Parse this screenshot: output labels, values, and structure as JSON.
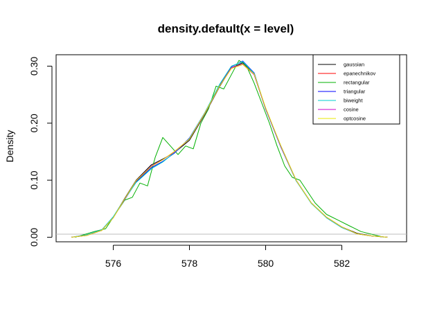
{
  "chart_data": {
    "type": "line",
    "title": "density.default(x = level)",
    "xlabel": "",
    "ylabel": "Density",
    "xlim": [
      574.5,
      583.7
    ],
    "ylim": [
      -0.008,
      0.32
    ],
    "xticks": [
      "576",
      "578",
      "580",
      "582"
    ],
    "yticks": [
      "0.00",
      "0.10",
      "0.20",
      "0.30"
    ],
    "xtick_values": [
      576,
      578,
      580,
      582
    ],
    "ytick_values": [
      0.0,
      0.1,
      0.2,
      0.3
    ],
    "zero_line": true,
    "grid": false,
    "legend_position": "top-right",
    "series": [
      {
        "name": "gaussian",
        "color": "#000000",
        "x": [
          574.9,
          575.3,
          575.7,
          576.0,
          576.3,
          576.6,
          577.0,
          577.3,
          577.6,
          578.0,
          578.4,
          578.8,
          579.1,
          579.4,
          579.7,
          580.0,
          580.4,
          580.8,
          581.2,
          581.6,
          582.0,
          582.4,
          582.8,
          583.2
        ],
        "y": [
          0.0,
          0.003,
          0.012,
          0.035,
          0.068,
          0.1,
          0.127,
          0.137,
          0.148,
          0.17,
          0.215,
          0.265,
          0.297,
          0.306,
          0.285,
          0.225,
          0.16,
          0.1,
          0.06,
          0.035,
          0.018,
          0.007,
          0.002,
          0.0
        ]
      },
      {
        "name": "epanechnikov",
        "color": "#ff0000",
        "x": [
          574.9,
          575.3,
          575.7,
          576.0,
          576.3,
          576.6,
          577.0,
          577.3,
          577.6,
          578.0,
          578.4,
          578.8,
          579.1,
          579.4,
          579.7,
          580.0,
          580.4,
          580.8,
          581.2,
          581.6,
          582.0,
          582.4,
          582.8,
          583.2
        ],
        "y": [
          0.0,
          0.003,
          0.012,
          0.034,
          0.067,
          0.098,
          0.124,
          0.136,
          0.15,
          0.172,
          0.217,
          0.266,
          0.296,
          0.303,
          0.285,
          0.226,
          0.159,
          0.1,
          0.06,
          0.035,
          0.018,
          0.006,
          0.002,
          0.0
        ]
      },
      {
        "name": "rectangular",
        "color": "#00b000",
        "x": [
          575.0,
          575.5,
          575.8,
          576.1,
          576.3,
          576.5,
          576.7,
          576.9,
          577.1,
          577.3,
          577.5,
          577.7,
          577.9,
          578.1,
          578.3,
          578.5,
          578.7,
          578.9,
          579.1,
          579.3,
          579.5,
          579.7,
          579.9,
          580.1,
          580.3,
          580.5,
          580.7,
          580.9,
          581.1,
          581.3,
          581.6,
          581.9,
          582.2,
          582.5,
          582.8,
          583.1
        ],
        "y": [
          0.0,
          0.01,
          0.015,
          0.045,
          0.065,
          0.07,
          0.095,
          0.09,
          0.14,
          0.175,
          0.16,
          0.145,
          0.16,
          0.155,
          0.2,
          0.225,
          0.265,
          0.26,
          0.285,
          0.31,
          0.3,
          0.27,
          0.235,
          0.2,
          0.16,
          0.125,
          0.105,
          0.1,
          0.08,
          0.06,
          0.04,
          0.03,
          0.02,
          0.01,
          0.005,
          0.0
        ]
      },
      {
        "name": "triangular",
        "color": "#0000ff",
        "x": [
          574.9,
          575.3,
          575.7,
          576.0,
          576.3,
          576.6,
          577.0,
          577.3,
          577.6,
          578.0,
          578.4,
          578.8,
          579.1,
          579.4,
          579.7,
          580.0,
          580.4,
          580.8,
          581.2,
          581.6,
          582.0,
          582.4,
          582.8,
          583.2
        ],
        "y": [
          0.0,
          0.004,
          0.013,
          0.035,
          0.066,
          0.097,
          0.122,
          0.133,
          0.147,
          0.174,
          0.218,
          0.268,
          0.299,
          0.309,
          0.288,
          0.225,
          0.158,
          0.099,
          0.06,
          0.034,
          0.017,
          0.006,
          0.002,
          0.0
        ]
      },
      {
        "name": "biweight",
        "color": "#00cccc",
        "x": [
          574.9,
          575.3,
          575.7,
          576.0,
          576.3,
          576.6,
          577.0,
          577.3,
          577.6,
          578.0,
          578.4,
          578.8,
          579.1,
          579.4,
          579.7,
          580.0,
          580.4,
          580.8,
          581.2,
          581.6,
          582.0,
          582.4,
          582.8,
          583.2
        ],
        "y": [
          0.0,
          0.004,
          0.013,
          0.036,
          0.067,
          0.096,
          0.12,
          0.132,
          0.148,
          0.173,
          0.218,
          0.269,
          0.3,
          0.308,
          0.287,
          0.226,
          0.159,
          0.099,
          0.059,
          0.034,
          0.017,
          0.006,
          0.002,
          0.0
        ]
      },
      {
        "name": "cosine",
        "color": "#cc00cc",
        "x": [
          574.9,
          575.3,
          575.7,
          576.0,
          576.3,
          576.6,
          577.0,
          577.3,
          577.6,
          578.0,
          578.4,
          578.8,
          579.1,
          579.4,
          579.7,
          580.0,
          580.4,
          580.8,
          581.2,
          581.6,
          582.0,
          582.4,
          582.8,
          583.2
        ],
        "y": [
          0.0,
          0.003,
          0.012,
          0.034,
          0.067,
          0.099,
          0.125,
          0.136,
          0.149,
          0.172,
          0.216,
          0.266,
          0.297,
          0.304,
          0.285,
          0.226,
          0.159,
          0.1,
          0.06,
          0.035,
          0.018,
          0.006,
          0.002,
          0.0
        ]
      },
      {
        "name": "optcosine",
        "color": "#e8e800",
        "x": [
          574.9,
          575.3,
          575.7,
          576.0,
          576.3,
          576.6,
          577.0,
          577.3,
          577.6,
          578.0,
          578.4,
          578.8,
          579.1,
          579.4,
          579.7,
          580.0,
          580.4,
          580.8,
          581.2,
          581.6,
          582.0,
          582.4,
          582.8,
          583.2
        ],
        "y": [
          0.0,
          0.003,
          0.012,
          0.034,
          0.067,
          0.099,
          0.124,
          0.136,
          0.15,
          0.172,
          0.217,
          0.266,
          0.296,
          0.303,
          0.286,
          0.227,
          0.16,
          0.1,
          0.06,
          0.035,
          0.018,
          0.006,
          0.002,
          0.0
        ]
      }
    ]
  }
}
